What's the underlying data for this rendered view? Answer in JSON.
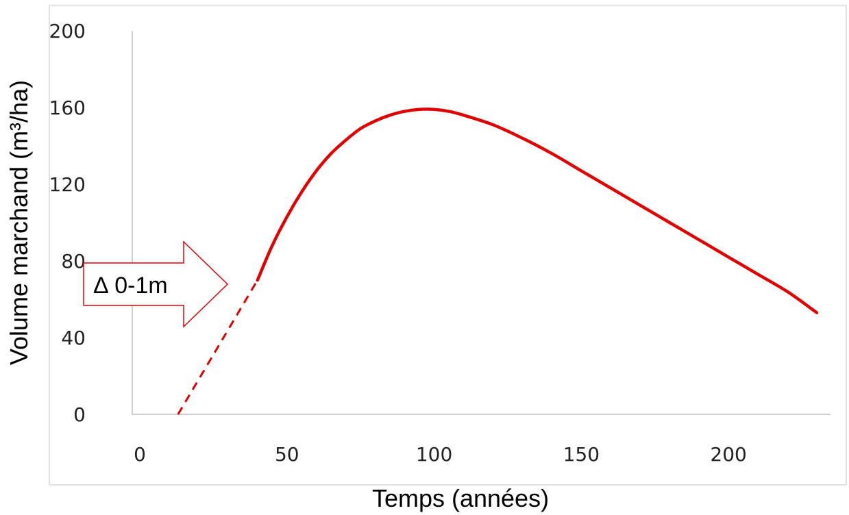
{
  "chart_data": {
    "type": "line",
    "title": "",
    "xlabel": "Temps (années)",
    "ylabel": "Volume marchand (m³/ha)",
    "xlim": [
      0,
      230
    ],
    "ylim": [
      0,
      200
    ],
    "x_ticks": [
      "0",
      "50",
      "100",
      "150",
      "200"
    ],
    "y_ticks": [
      "0",
      "40",
      "80",
      "120",
      "160",
      "200"
    ],
    "grid": false,
    "colors": {
      "series": "#e00000",
      "arrow": "#e00000",
      "axis": "#bfbfbf",
      "frame": "#d9d9d9"
    },
    "series": [
      {
        "style": "solid",
        "x": [
          40,
          45,
          50,
          55,
          60,
          65,
          70,
          75,
          80,
          85,
          90,
          95,
          100,
          105,
          110,
          120,
          130,
          140,
          150,
          160,
          170,
          180,
          190,
          200,
          210,
          220,
          230
        ],
        "values": [
          70,
          88,
          103,
          116,
          127,
          136,
          143,
          149,
          153,
          156,
          158,
          159,
          159,
          158,
          156,
          151,
          144,
          136,
          127,
          118,
          109,
          100,
          91,
          82,
          73,
          64,
          53
        ]
      },
      {
        "style": "dashed",
        "x": [
          13,
          40
        ],
        "values": [
          0,
          70
        ]
      }
    ],
    "annotations": [
      {
        "type": "arrow-callout",
        "text": "∆ 0-1m",
        "direction": "right"
      }
    ]
  }
}
